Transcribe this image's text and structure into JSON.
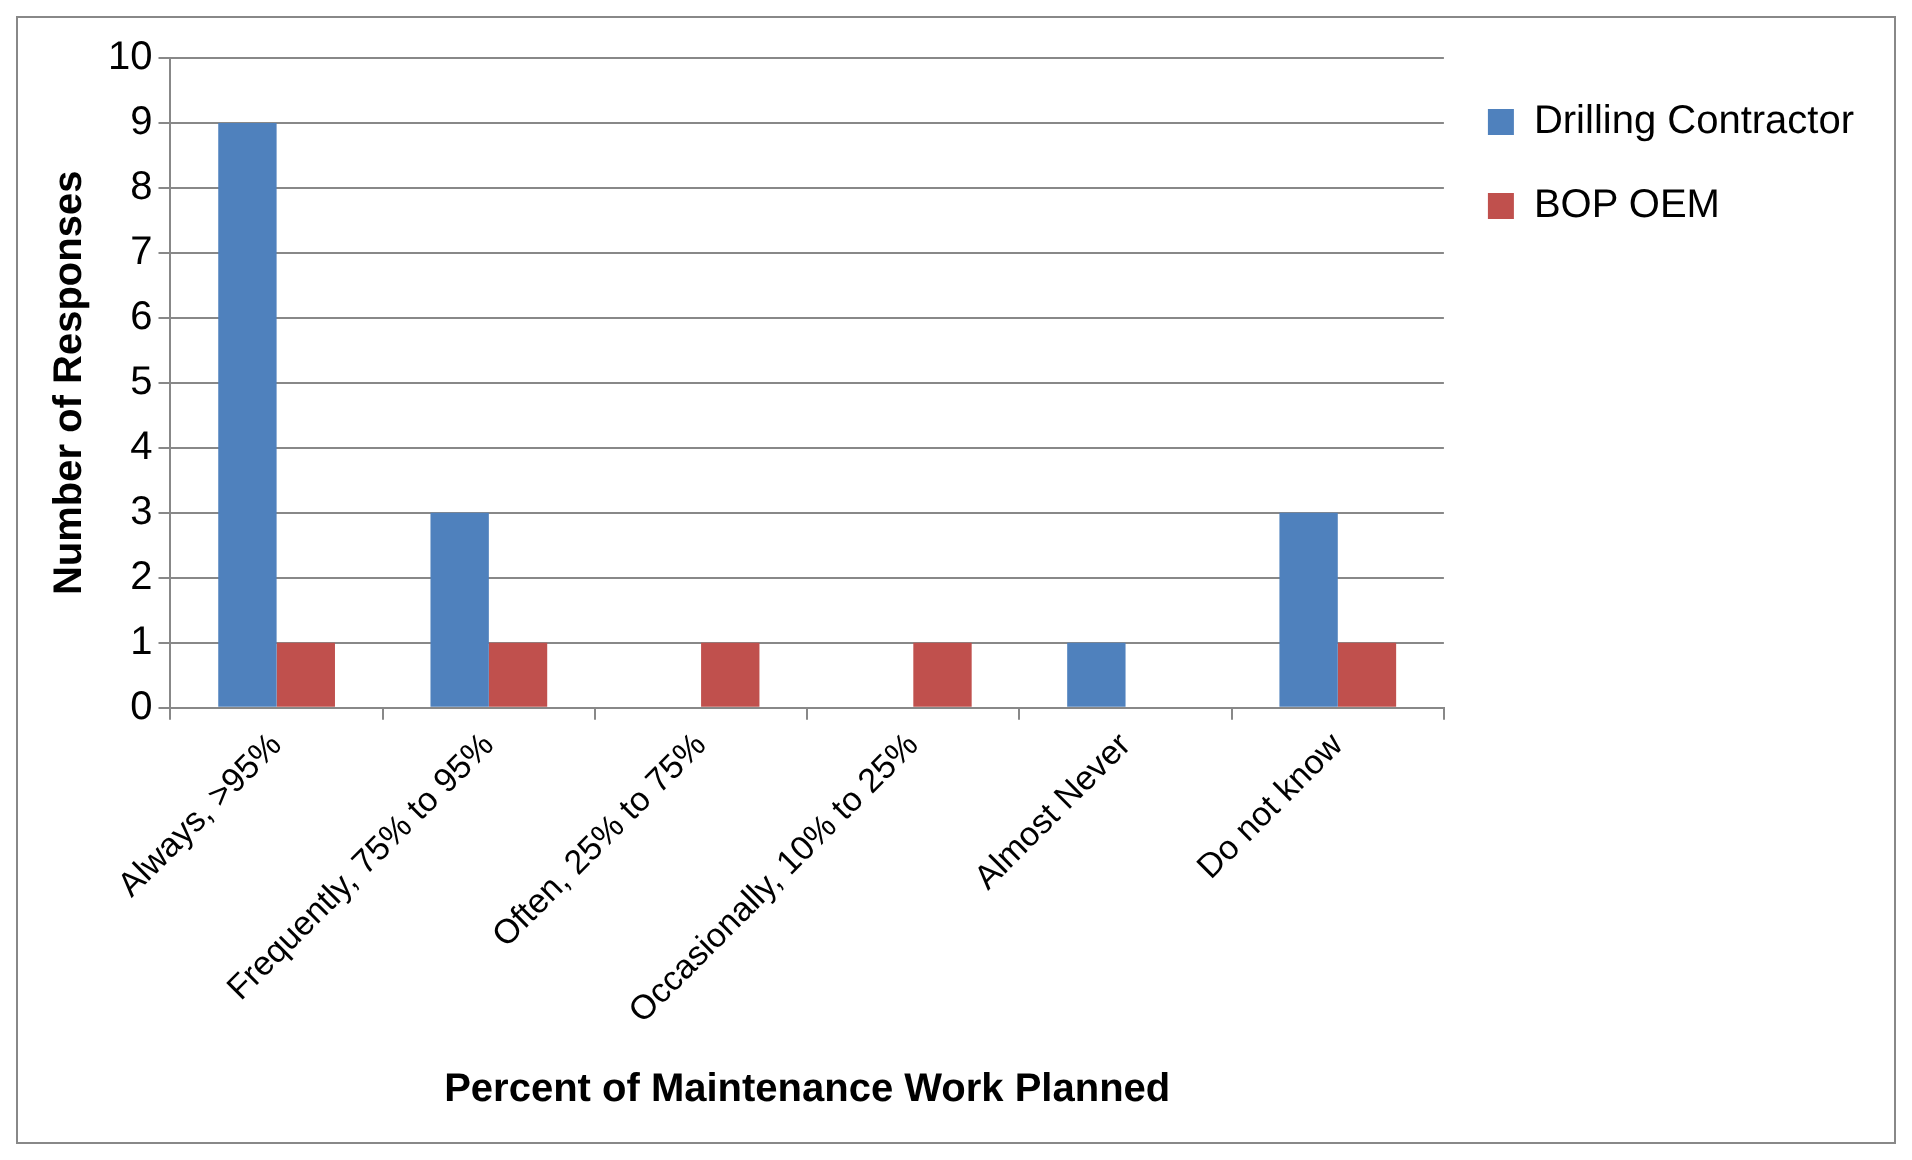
{
  "chart_data": {
    "type": "bar",
    "xlabel": "Percent of Maintenance Work Planned",
    "ylabel": "Number of Responses",
    "categories": [
      "Always, >95%",
      "Frequently, 75% to 95%",
      "Often, 25% to 75%",
      "Occasionally, 10% to 25%",
      "Almost Never",
      "Do not know"
    ],
    "series": [
      {
        "name": "Drilling Contractor",
        "color": "#4f81bd",
        "values": [
          9,
          3,
          0,
          0,
          1,
          3
        ]
      },
      {
        "name": "BOP OEM",
        "color": "#c0504d",
        "values": [
          1,
          1,
          1,
          1,
          0,
          1
        ]
      }
    ],
    "ylim": [
      0,
      10
    ],
    "yticks": [
      0,
      1,
      2,
      3,
      4,
      5,
      6,
      7,
      8,
      9,
      10
    ],
    "grid": "y",
    "legend": "top right"
  }
}
